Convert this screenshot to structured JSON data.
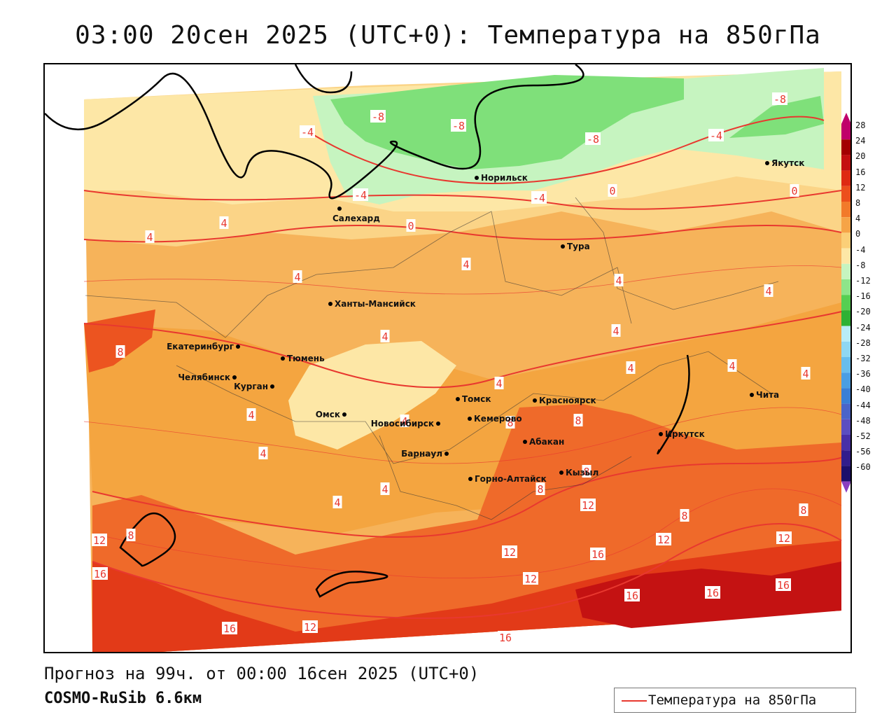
{
  "title": "03:00 20сен 2025 (UTC+0): Температура на 850гПа",
  "forecast_info": "Прогноз на 99ч. от 00:00 16сен 2025 (UTC+0)",
  "model": "COSMO-RuSib 6.6км",
  "legend": {
    "label": "Температура на 850гПа",
    "color": "#e8382f"
  },
  "colorbar": {
    "labels": [
      "28",
      "24",
      "20",
      "16",
      "12",
      "8",
      "4",
      "0",
      "-4",
      "-8",
      "-12",
      "-16",
      "-20",
      "-24",
      "-28",
      "-32",
      "-36",
      "-40",
      "-44",
      "-48",
      "-52",
      "-56",
      "-60"
    ],
    "colors": [
      "#c0006a",
      "#a30000",
      "#c40f0f",
      "#de2a12",
      "#ec4f1c",
      "#f27a2a",
      "#f6a447",
      "#fbcf78",
      "#fde7a6",
      "#c6f4c0",
      "#8ee58a",
      "#56cf52",
      "#2fb134",
      "#b8ecf7",
      "#8fd7f2",
      "#68bdec",
      "#4a9ee3",
      "#3a7fd6",
      "#4a64c9",
      "#5b4ec0",
      "#4830a8",
      "#321d8c",
      "#1d0f6b"
    ]
  },
  "cities": [
    {
      "name": "Норильск"
    },
    {
      "name": "Якутск"
    },
    {
      "name": "Салехард"
    },
    {
      "name": "Тура"
    },
    {
      "name": "Ханты-Мансийск"
    },
    {
      "name": "Екатеринбург"
    },
    {
      "name": "Тюмень"
    },
    {
      "name": "Челябинск"
    },
    {
      "name": "Курган"
    },
    {
      "name": "Омск"
    },
    {
      "name": "Новосибирск"
    },
    {
      "name": "Томск"
    },
    {
      "name": "Кемерово"
    },
    {
      "name": "Красноярск"
    },
    {
      "name": "Барнаул"
    },
    {
      "name": "Абакан"
    },
    {
      "name": "Горно-Алтайск"
    },
    {
      "name": "Кызыл"
    },
    {
      "name": "Иркутск"
    },
    {
      "name": "Чита"
    }
  ],
  "contour_labels": [
    "-8",
    "-8",
    "-8",
    "-8",
    "-4",
    "-4",
    "-4",
    "-4",
    "0",
    "0",
    "0",
    "4",
    "4",
    "4",
    "4",
    "4",
    "4",
    "4",
    "4",
    "4",
    "4",
    "4",
    "4",
    "4",
    "4",
    "4",
    "4",
    "4",
    "8",
    "8",
    "8",
    "8",
    "8",
    "8",
    "8",
    "8",
    "12",
    "12",
    "12",
    "12",
    "12",
    "12",
    "12",
    "16",
    "16",
    "16",
    "16",
    "16",
    "16",
    "16"
  ]
}
